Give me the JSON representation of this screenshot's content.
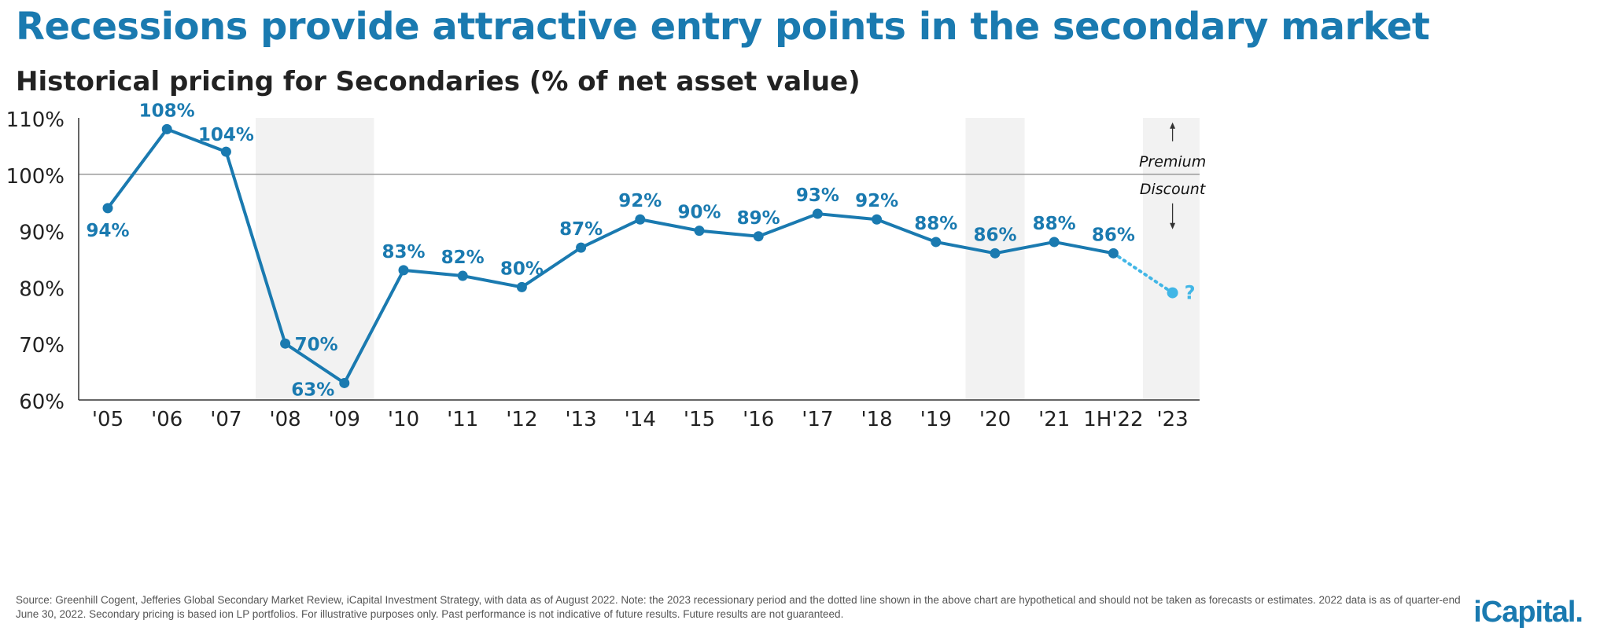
{
  "header": {
    "title": "Recessions provide attractive entry points in the secondary market",
    "subtitle": "Historical pricing for Secondaries (% of net asset value)"
  },
  "footnote": "Source: Greenhill Cogent, Jefferies Global Secondary Market Review, iCapital Investment Strategy, with data as of August 2022. Note: the 2023 recessionary period and the dotted line shown in the above chart are hypothetical and should not be taken as forecasts or estimates. 2022 data is as of quarter-end June 30, 2022. Secondary pricing is based ion LP portfolios. For illustrative purposes only. Past performance is not indicative of future results. Future results are not guaranteed.",
  "logo": {
    "text": "iCapital."
  },
  "chart_data": {
    "type": "line",
    "categories": [
      "'05",
      "'06",
      "'07",
      "'08",
      "'09",
      "'10",
      "'11",
      "'12",
      "'13",
      "'14",
      "'15",
      "'16",
      "'17",
      "'18",
      "'19",
      "'20",
      "'21",
      "1H'22",
      "'23"
    ],
    "values": [
      94,
      108,
      104,
      70,
      63,
      83,
      82,
      80,
      87,
      92,
      90,
      89,
      93,
      92,
      88,
      86,
      88,
      86,
      null
    ],
    "data_labels": [
      "94%",
      "108%",
      "104%",
      "70%",
      "63%",
      "83%",
      "82%",
      "80%",
      "87%",
      "92%",
      "90%",
      "89%",
      "93%",
      "92%",
      "88%",
      "86%",
      "88%",
      "86%",
      "?"
    ],
    "hypothetical": {
      "from": "1H'22",
      "to": "'23",
      "from_value": 86,
      "to_value": 79,
      "label": "?",
      "style": "dotted"
    },
    "recession_shading": [
      [
        "'08",
        "'09"
      ],
      [
        "'20",
        "'20"
      ],
      [
        "'23",
        "'23"
      ]
    ],
    "reference_line": {
      "value": 100,
      "label_above": "Premium",
      "label_below": "Discount"
    },
    "ylim": [
      60,
      110
    ],
    "yticks": [
      60,
      70,
      80,
      90,
      100,
      110
    ],
    "ytick_labels": [
      "60%",
      "70%",
      "80%",
      "90%",
      "100%",
      "110%"
    ],
    "grid": false,
    "colors": {
      "line": "#1a7ab0",
      "hypothetical": "#41b6e6",
      "shading": "#f2f2f2",
      "axis": "#333333",
      "reference": "#999999"
    }
  }
}
